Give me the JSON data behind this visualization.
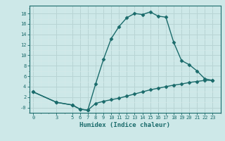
{
  "xlabel": "Humidex (Indice chaleur)",
  "ylabel": "",
  "bg_color": "#cde8e8",
  "grid_color_major": "#b8d4d4",
  "grid_color_minor": "#d4e8e8",
  "line_color": "#1a6b6b",
  "x_ticks": [
    0,
    3,
    5,
    6,
    7,
    8,
    9,
    10,
    11,
    12,
    13,
    14,
    15,
    16,
    17,
    18,
    19,
    20,
    21,
    22,
    23
  ],
  "y_ticks": [
    0,
    2,
    4,
    6,
    8,
    10,
    12,
    14,
    16,
    18
  ],
  "ylim": [
    -1.0,
    19.5
  ],
  "xlim": [
    -0.5,
    24.0
  ],
  "curve1_x": [
    0,
    3,
    5,
    6,
    7,
    8,
    9,
    10,
    11,
    12,
    13,
    14,
    15,
    16,
    17,
    18,
    19,
    20,
    21,
    22,
    23
  ],
  "curve1_y": [
    3.0,
    1.0,
    0.5,
    -0.3,
    -0.5,
    4.5,
    9.2,
    13.2,
    15.5,
    17.2,
    18.0,
    17.8,
    18.3,
    17.5,
    17.3,
    12.5,
    9.0,
    8.2,
    7.0,
    5.5,
    5.2
  ],
  "curve2_x": [
    0,
    3,
    5,
    6,
    7,
    8,
    9,
    10,
    11,
    12,
    13,
    14,
    15,
    16,
    17,
    18,
    19,
    20,
    21,
    22,
    23
  ],
  "curve2_y": [
    3.0,
    1.0,
    0.5,
    -0.3,
    -0.5,
    0.8,
    1.2,
    1.5,
    1.8,
    2.2,
    2.6,
    3.0,
    3.4,
    3.7,
    4.0,
    4.3,
    4.5,
    4.8,
    5.0,
    5.2,
    5.2
  ],
  "marker": "D",
  "markersize": 2.5,
  "linewidth": 1.0,
  "tick_fontsize": 5,
  "label_fontsize": 6.5
}
